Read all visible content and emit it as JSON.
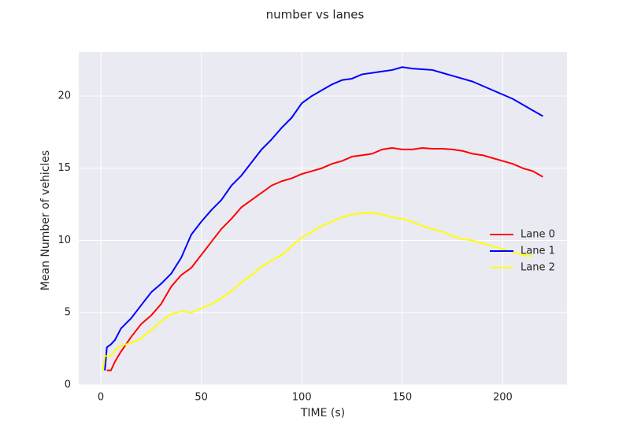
{
  "chart_data": {
    "type": "line",
    "title": "number vs lanes",
    "x_label": "TIME (s)",
    "y_label": "Mean Number of vehicles",
    "x": [
      1,
      2,
      3,
      5,
      7,
      10,
      15,
      20,
      25,
      30,
      35,
      40,
      45,
      50,
      55,
      60,
      65,
      70,
      75,
      80,
      85,
      90,
      95,
      100,
      105,
      110,
      115,
      120,
      125,
      130,
      135,
      140,
      145,
      150,
      155,
      160,
      165,
      170,
      175,
      180,
      185,
      190,
      195,
      200,
      205,
      210,
      215,
      220
    ],
    "series": [
      {
        "name": "Lane 0",
        "color": "#ff0000",
        "values": [
          null,
          null,
          1,
          1,
          1.6,
          2.3,
          3.3,
          4.2,
          4.8,
          5.6,
          6.8,
          7.6,
          8.1,
          9.0,
          9.9,
          10.8,
          11.5,
          12.3,
          12.8,
          13.3,
          13.8,
          14.1,
          14.3,
          14.6,
          14.8,
          15.0,
          15.3,
          15.5,
          15.8,
          15.9,
          16.0,
          16.3,
          16.4,
          16.3,
          16.3,
          16.4,
          16.35,
          16.35,
          16.3,
          16.2,
          16.0,
          15.9,
          15.7,
          15.5,
          15.3,
          15.0,
          14.8,
          14.4
        ]
      },
      {
        "name": "Lane 1",
        "color": "#0000ff",
        "values": [
          null,
          1,
          2.6,
          2.8,
          3.1,
          3.9,
          4.6,
          5.5,
          6.4,
          7.0,
          7.7,
          8.8,
          10.4,
          11.3,
          12.1,
          12.8,
          13.8,
          14.5,
          15.4,
          16.3,
          17.0,
          17.8,
          18.5,
          19.5,
          20.0,
          20.4,
          20.8,
          21.1,
          21.2,
          21.5,
          21.6,
          21.7,
          21.8,
          22.0,
          21.9,
          21.85,
          21.8,
          21.6,
          21.4,
          21.2,
          21.0,
          20.7,
          20.4,
          20.1,
          19.8,
          19.4,
          19.0,
          18.6
        ]
      },
      {
        "name": "Lane 2",
        "color": "#ffff00",
        "values": [
          1.0,
          2.0,
          2.0,
          2.0,
          2.4,
          2.7,
          2.9,
          3.2,
          3.8,
          4.4,
          4.9,
          5.1,
          5.0,
          5.3,
          5.6,
          6.0,
          6.5,
          7.1,
          7.6,
          8.2,
          8.6,
          9.0,
          9.6,
          10.2,
          10.6,
          11.0,
          11.3,
          11.6,
          11.8,
          11.9,
          11.9,
          11.8,
          11.6,
          11.5,
          11.3,
          11.0,
          10.8,
          10.6,
          10.3,
          10.1,
          10.0,
          9.8,
          9.6,
          9.4,
          9.2,
          9.0,
          8.9,
          null
        ]
      }
    ],
    "xlim": [
      -11,
      232
    ],
    "ylim": [
      0,
      23.05
    ],
    "xticks": [
      0,
      50,
      100,
      150,
      200
    ],
    "yticks": [
      0,
      5,
      10,
      15,
      20
    ],
    "grid": true,
    "legend": "right"
  }
}
